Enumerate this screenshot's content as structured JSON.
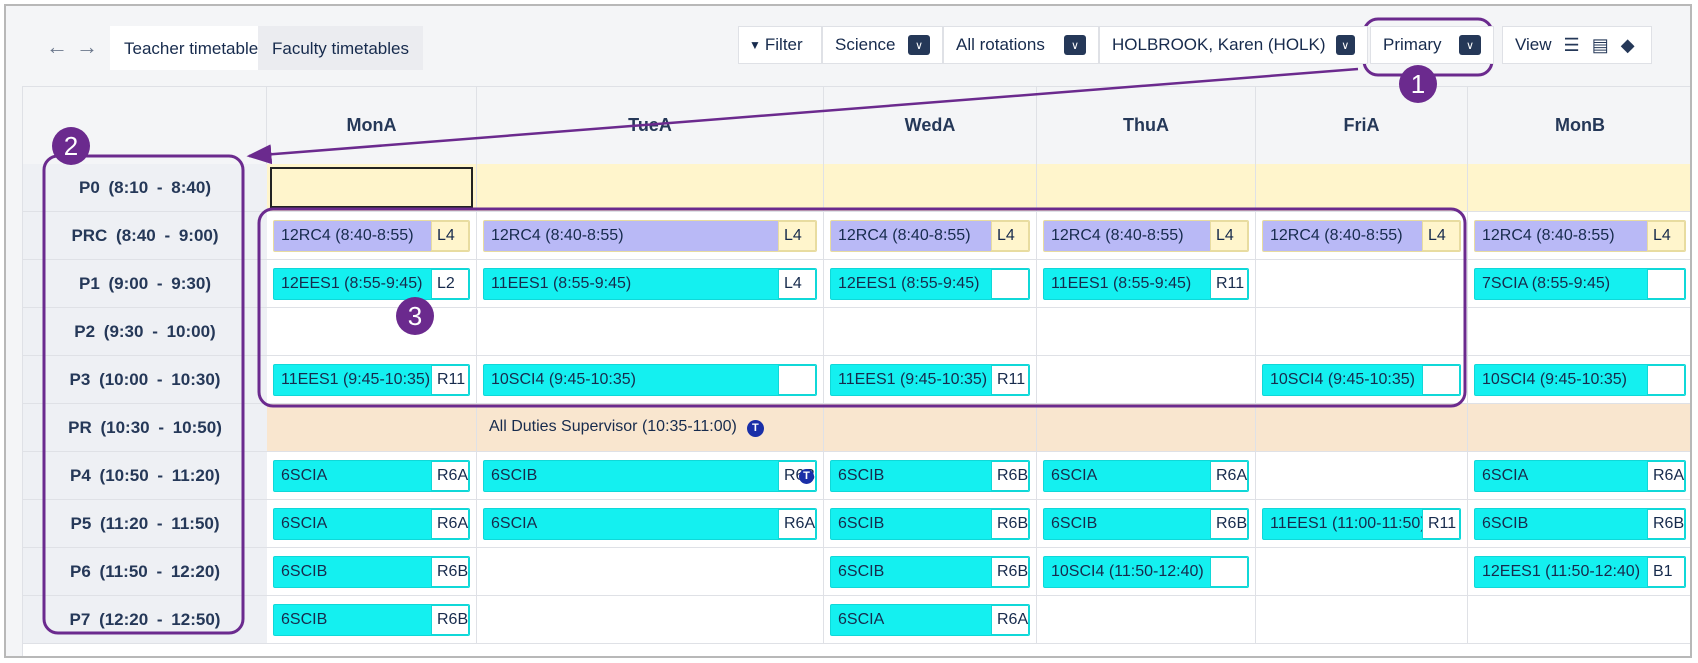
{
  "toolbar": {
    "tabs": [
      "Teacher timetables",
      "Faculty timetables"
    ],
    "filter": "Filter",
    "dropdowns": [
      "Science",
      "All rotations",
      "HOLBROOK, Karen (HOLK)",
      "Primary"
    ],
    "view": "View"
  },
  "timetable": {
    "days": [
      "MonA",
      "TueA",
      "WedA",
      "ThuA",
      "FriA",
      "MonB"
    ],
    "selected": [
      0,
      0
    ],
    "rows": [
      {
        "label": "P0 (8:10 - 8:40)",
        "background": "#fff5cc",
        "cells": [
          null,
          null,
          null,
          null,
          null,
          null
        ]
      },
      {
        "label": "PRC (8:40 - 9:00)",
        "lesson_color": "#b9b9f6",
        "cells": [
          {
            "class": "12RC4 (8:40-8:55)",
            "room": "L4"
          },
          {
            "class": "12RC4 (8:40-8:55)",
            "room": "L4"
          },
          {
            "class": "12RC4 (8:40-8:55)",
            "room": "L4"
          },
          {
            "class": "12RC4 (8:40-8:55)",
            "room": "L4"
          },
          {
            "class": "12RC4 (8:40-8:55)",
            "room": "L4"
          },
          {
            "class": "12RC4 (8:40-8:55)",
            "room": "L4"
          }
        ]
      },
      {
        "label": "P1 (9:00 - 9:30)",
        "cells": [
          {
            "class": "12EES1 (8:55-9:45)",
            "room": "L2"
          },
          {
            "class": "11EES1 (8:55-9:45)",
            "room": "L4"
          },
          {
            "class": "12EES1 (8:55-9:45)"
          },
          {
            "class": "11EES1 (8:55-9:45)",
            "room": "R11"
          },
          null,
          {
            "class": "7SCIA (8:55-9:45)"
          }
        ]
      },
      {
        "label": "P2 (9:30 - 10:00)",
        "cells": [
          null,
          null,
          null,
          null,
          null,
          null
        ]
      },
      {
        "label": "P3 (10:00 - 10:30)",
        "cells": [
          {
            "class": "11EES1 (9:45-10:35)",
            "room": "R11"
          },
          {
            "class": "10SCI4 (9:45-10:35)"
          },
          {
            "class": "11EES1 (9:45-10:35)",
            "room": "R11"
          },
          null,
          {
            "class": "10SCI4 (9:45-10:35)"
          },
          {
            "class": "10SCI4 (9:45-10:35)"
          }
        ]
      },
      {
        "label": "PR (10:30 - 10:50)",
        "background": "#f9e6cf",
        "boxed": false,
        "cells": [
          null,
          {
            "class": "All Duties Supervisor (10:35-11:00)",
            "badge": true
          },
          null,
          null,
          null,
          null
        ]
      },
      {
        "label": "P4 (10:50 - 11:20)",
        "cells": [
          {
            "class": "6SCIA",
            "room": "R6A"
          },
          {
            "class": "6SCIB",
            "room": "R6B",
            "badge": true
          },
          {
            "class": "6SCIB",
            "room": "R6B"
          },
          {
            "class": "6SCIA",
            "room": "R6A"
          },
          null,
          {
            "class": "6SCIA",
            "room": "R6A"
          }
        ]
      },
      {
        "label": "P5 (11:20 - 11:50)",
        "cells": [
          {
            "class": "6SCIA",
            "room": "R6A"
          },
          {
            "class": "6SCIA",
            "room": "R6A"
          },
          {
            "class": "6SCIB",
            "room": "R6B"
          },
          {
            "class": "6SCIB",
            "room": "R6B"
          },
          {
            "class": "11EES1 (11:00-11:50)",
            "room": "R11"
          },
          {
            "class": "6SCIB",
            "room": "R6B"
          }
        ]
      },
      {
        "label": "P6 (11:50 - 12:20)",
        "cells": [
          {
            "class": "6SCIB",
            "room": "R6B"
          },
          null,
          {
            "class": "6SCIB",
            "room": "R6B"
          },
          {
            "class": "10SCI4 (11:50-12:40)"
          },
          null,
          {
            "class": "12EES1 (11:50-12:40)",
            "room": "B1"
          }
        ]
      },
      {
        "label": "P7 (12:20 - 12:50)",
        "cells": [
          {
            "class": "6SCIB",
            "room": "R6B"
          },
          null,
          {
            "class": "6SCIA",
            "room": "R6A"
          },
          null,
          null,
          null
        ]
      }
    ]
  },
  "annotations": [
    "1",
    "2",
    "3"
  ]
}
